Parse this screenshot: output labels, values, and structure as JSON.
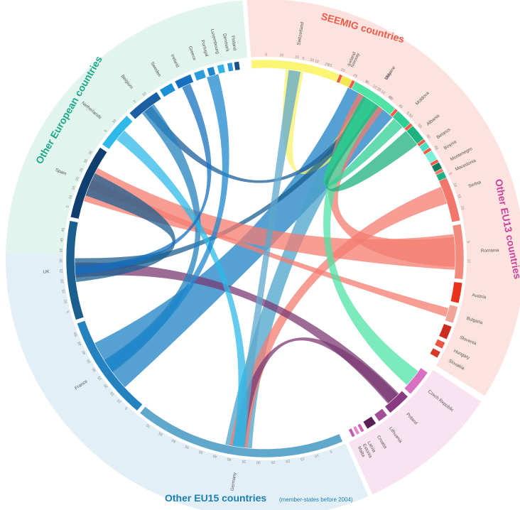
{
  "chart_data": {
    "type": "chord",
    "groups": [
      {
        "name": "SEEMIG countries",
        "color": "#f25a48",
        "bg": "#fde3e0",
        "countries": [
          "Italy",
          "Serbia",
          "Romania",
          "Austria",
          "Bulgaria",
          "Slovenia",
          "Hungary",
          "Slovakia"
        ]
      },
      {
        "name": "Other EU13 countries",
        "color": "#c9449c",
        "bg": "#f8e4f0",
        "countries": [
          "Czech Republic",
          "Poland",
          "Lithuania",
          "Croatia",
          "Latvia",
          "Estonia",
          "Malta"
        ]
      },
      {
        "name": "Other EU15 countries",
        "note": "(member-states before 2004)",
        "color": "#2a83b5",
        "bg": "#e3eff6",
        "countries": [
          "Germany",
          "France",
          "UK",
          "Spain",
          "Netherlands",
          "Belgium",
          "Sweden",
          "Ireland",
          "Greece",
          "Portugal",
          "Luxembourg",
          "Denmark",
          "Finland"
        ]
      },
      {
        "name": "Other European countries",
        "color": "#1ba98a",
        "bg": "#e2f4ee",
        "countries": [
          "Switzerland",
          "Norway",
          "Iceland",
          "Ukraine",
          "Moldova",
          "Albania",
          "Belarus",
          "Bosnia",
          "Montenegro",
          "Macedonia"
        ]
      }
    ],
    "segments": [
      {
        "name": "Italy",
        "label": "Italy",
        "start": 7,
        "end": 61,
        "color": "#f25a48",
        "ticks": [
          5,
          10,
          15,
          20,
          25,
          30,
          35,
          40,
          45,
          50,
          55,
          60,
          65
        ]
      },
      {
        "name": "Serbia",
        "label": "Serbia",
        "start": 62,
        "end": 79,
        "color": "#f2776a",
        "ticks": [
          5,
          10,
          15,
          20
        ]
      },
      {
        "name": "Romania",
        "label": "Romania",
        "start": 80,
        "end": 96,
        "color": "#f28b7e",
        "ticks": [
          5,
          10
        ]
      },
      {
        "name": "Austria",
        "label": "Austria",
        "start": 97,
        "end": 103,
        "color": "#e8321c"
      },
      {
        "name": "Bulgaria",
        "label": "Bulgaria",
        "start": 104,
        "end": 109,
        "color": "#f0a599"
      },
      {
        "name": "Slovenia",
        "label": "Slovenia",
        "start": 110,
        "end": 114,
        "color": "#cc2c20"
      },
      {
        "name": "Hungary",
        "label": "Hungary",
        "start": 115,
        "end": 117,
        "color": "#ee5540"
      },
      {
        "name": "Slovakia",
        "label": "Slovakia",
        "start": 118,
        "end": 120,
        "color": "#d8382a"
      },
      {
        "name": "Czech Republic",
        "label": "Czech Republic",
        "start": 125,
        "end": 133,
        "color": "#d970c2"
      },
      {
        "name": "Poland",
        "label": "Poland",
        "start": 134,
        "end": 141,
        "color": "#8a3a80"
      },
      {
        "name": "Lithuania",
        "label": "Lithuania",
        "start": 142,
        "end": 145,
        "color": "#a34e98"
      },
      {
        "name": "Croatia",
        "label": "Croatia",
        "start": 146,
        "end": 149,
        "color": "#5a1f55"
      },
      {
        "name": "Latvia",
        "label": "Latvia",
        "start": 150,
        "end": 151,
        "color": "#cf66b6"
      },
      {
        "name": "Estonia",
        "label": "Estonia",
        "start": 151.5,
        "end": 152.5,
        "color": "#e687cf"
      },
      {
        "name": "Malta",
        "label": "Malta",
        "start": 153,
        "end": 154,
        "color": "#c25cad"
      },
      {
        "name": "Germany",
        "label": "Germany",
        "start": 157,
        "end": 219,
        "color": "#5fa8cc",
        "ticks": [
          5,
          10,
          15,
          20,
          25,
          30,
          35,
          40,
          45,
          50,
          55,
          60,
          65,
          70
        ]
      },
      {
        "name": "France",
        "label": "France",
        "start": 220,
        "end": 251,
        "color": "#2482be",
        "ticks": [
          5,
          10,
          15,
          20,
          25,
          30,
          35,
          40,
          45,
          50
        ]
      },
      {
        "name": "UK",
        "label": "UK",
        "start": 252,
        "end": 281,
        "color": "#1b5f8f",
        "ticks": [
          5,
          10,
          15,
          20,
          25,
          30,
          35,
          40,
          45
        ]
      },
      {
        "name": "Spain",
        "label": "Spain",
        "start": 282,
        "end": 304,
        "color": "#0f3f6e",
        "ticks": [
          5,
          10,
          15,
          20,
          25,
          30,
          35
        ]
      },
      {
        "name": "Netherlands",
        "label": "Netherlands",
        "start": 305,
        "end": 316,
        "color": "#2eb9e8",
        "ticks": [
          5,
          10
        ]
      },
      {
        "name": "Belgium",
        "label": "Belgium",
        "start": 317,
        "end": 327,
        "color": "#1a5fa1",
        "ticks": [
          5,
          10
        ]
      },
      {
        "name": "Sweden",
        "label": "Sweden",
        "start": 328,
        "end": 332,
        "color": "#1c90d6"
      },
      {
        "name": "Ireland",
        "label": "Ireland",
        "start": 333,
        "end": 338,
        "color": "#1670c0"
      },
      {
        "name": "Greece",
        "label": "Greece",
        "start": 339,
        "end": 342,
        "color": "#2a9dda"
      },
      {
        "name": "Portugal",
        "label": "Portugal",
        "start": 343,
        "end": 345,
        "color": "#1e88cf"
      },
      {
        "name": "Luxembourg",
        "label": "Luxembourg",
        "start": 346,
        "end": 348,
        "color": "#35b3e6"
      },
      {
        "name": "Denmark",
        "label": "Denmark",
        "start": 349,
        "end": 350.5,
        "color": "#2a97d8"
      },
      {
        "name": "Finland",
        "label": "Finland",
        "start": 351,
        "end": 352.5,
        "color": "#1a4f86"
      },
      {
        "name": "Switzerland",
        "label": "Switzerland",
        "start": 356,
        "end": 22,
        "color": "#fcf573",
        "ticks": [
          5,
          10,
          15,
          20,
          25
        ]
      },
      {
        "name": "Norway",
        "label": "Norway",
        "start": 23,
        "end": 26,
        "color": "#f4e64f"
      },
      {
        "name": "Iceland",
        "label": "Iceland",
        "start": 23,
        "end": 24,
        "color": "#f4e64f",
        "hideArc": true
      },
      {
        "name": "Ukraine",
        "label": "Ukraine",
        "start": 27,
        "end": 41,
        "color": "#4fe3a6",
        "ticks": [
          5,
          10,
          15,
          20
        ]
      },
      {
        "name": "Moldova",
        "label": "Moldova",
        "start": 42,
        "end": 47,
        "color": "#2fce96",
        "ticks": [
          5
        ]
      },
      {
        "name": "Albania",
        "label": "Albania",
        "start": 48,
        "end": 53,
        "color": "#1db27f"
      },
      {
        "name": "Belarus",
        "label": "Belarus",
        "start": 54,
        "end": 56,
        "color": "#4adfc0"
      },
      {
        "name": "Bosnia",
        "label": "Bosnia",
        "start": 57,
        "end": 60,
        "color": "#7cefd9"
      },
      {
        "name": "Montenegro",
        "label": "Montenegro",
        "start": 61,
        "end": 63,
        "color": "#0f7d5e"
      },
      {
        "name": "Macedonia",
        "label": "Macedonia",
        "start": 64,
        "end": 66,
        "color": "#1fb086"
      }
    ],
    "flows": [
      {
        "from": "Italy",
        "to": "France",
        "width": 18,
        "color": "#1e82c4"
      },
      {
        "from": "Italy",
        "to": "Germany",
        "width": 9,
        "color": "#4ba3c9"
      },
      {
        "from": "Italy",
        "to": "Switzerland",
        "width": 6,
        "color": "#f9f26a"
      },
      {
        "from": "Italy",
        "to": "UK",
        "width": 3,
        "color": "#1a5f90"
      },
      {
        "from": "Italy",
        "to": "Belgium",
        "width": 3,
        "color": "#1b5e9a"
      },
      {
        "from": "Romania",
        "to": "Spain",
        "width": 12,
        "color": "#f47c70"
      },
      {
        "from": "Romania",
        "to": "Italy",
        "width": 10,
        "color": "#f47c70"
      },
      {
        "from": "Serbia",
        "to": "Germany",
        "width": 6,
        "color": "#f47c70"
      },
      {
        "from": "Bulgaria",
        "to": "Spain",
        "width": 3,
        "color": "#f47c70"
      },
      {
        "from": "Poland",
        "to": "UK",
        "width": 5,
        "color": "#7b3a73"
      },
      {
        "from": "Poland",
        "to": "Germany",
        "width": 4,
        "color": "#7b3a73"
      },
      {
        "from": "Ukraine",
        "to": "Czech Republic",
        "width": 6,
        "color": "#4fe3a6"
      },
      {
        "from": "Albania",
        "to": "Italy",
        "width": 6,
        "color": "#1db27f"
      },
      {
        "from": "Moldova",
        "to": "Italy",
        "width": 4,
        "color": "#2fce96"
      },
      {
        "from": "Spain",
        "to": "UK",
        "width": 8,
        "color": "#1b5f8f"
      },
      {
        "from": "France",
        "to": "Belgium",
        "width": 5,
        "color": "#2482be"
      },
      {
        "from": "Germany",
        "to": "Switzerland",
        "width": 4,
        "color": "#5fa8cc"
      },
      {
        "from": "Netherlands",
        "to": "Germany",
        "width": 4,
        "color": "#2eb9e8"
      },
      {
        "from": "Ireland",
        "to": "UK",
        "width": 3,
        "color": "#1670c0"
      },
      {
        "from": "Portugal",
        "to": "France",
        "width": 4,
        "color": "#1e88cf"
      }
    ]
  }
}
